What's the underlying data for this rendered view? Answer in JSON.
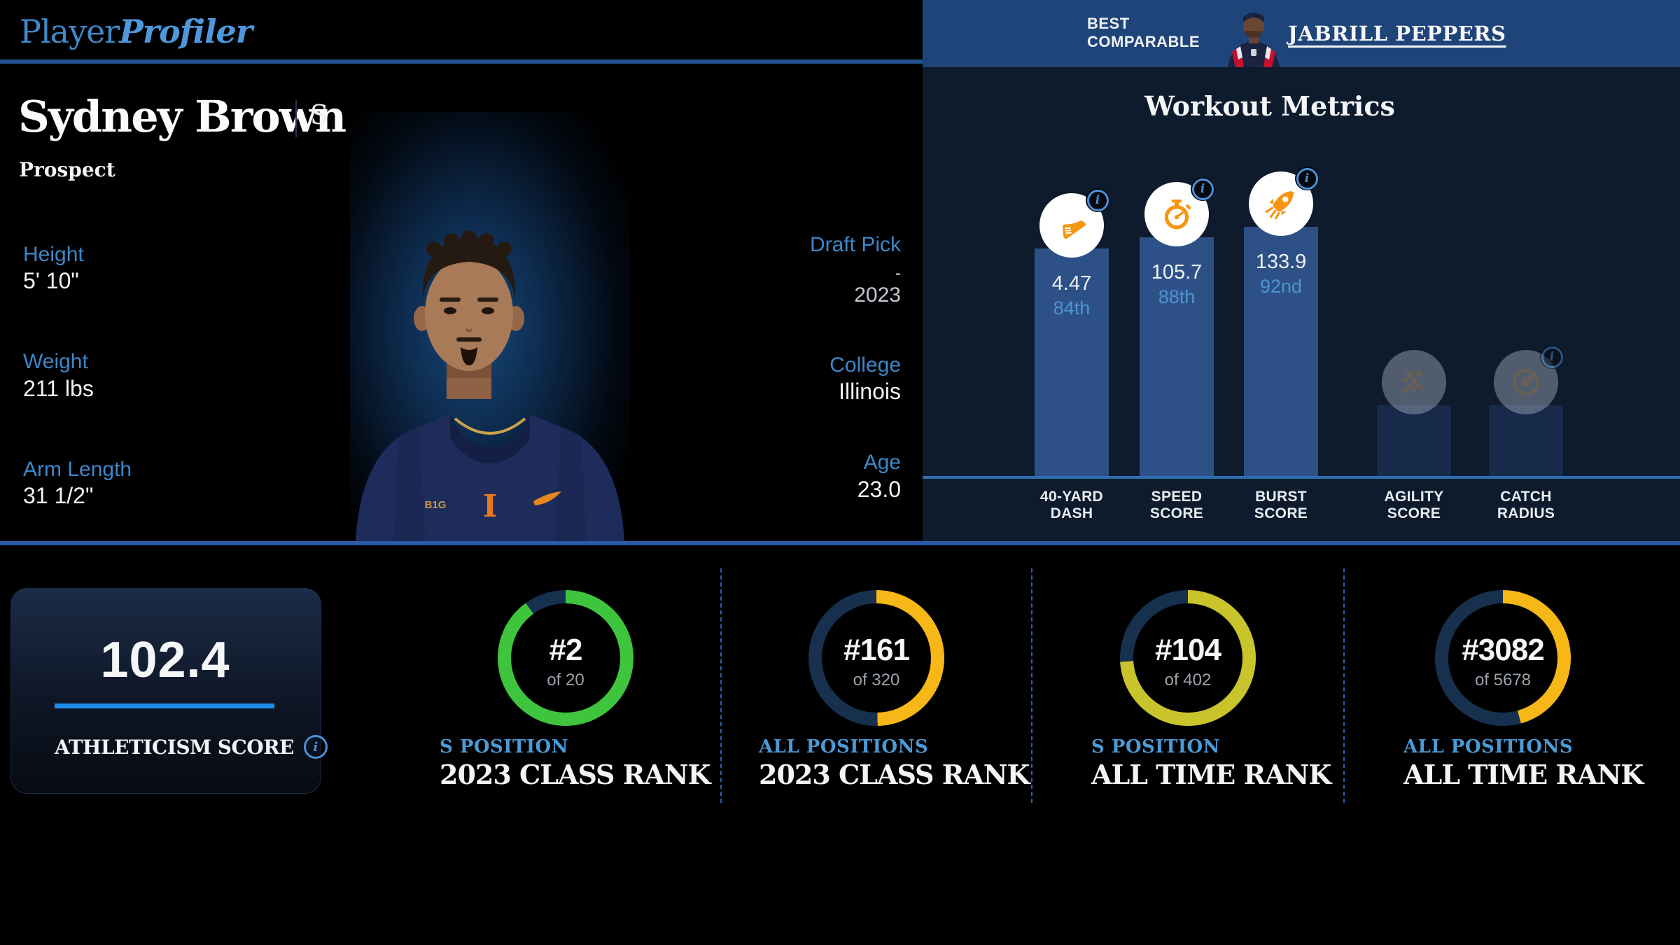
{
  "brand": {
    "word1": "Player",
    "word2": "Profiler"
  },
  "header": {
    "best_comparable_line1": "BEST",
    "best_comparable_line2": "COMPARABLE",
    "comparable_name": "JABRILL PEPPERS"
  },
  "player": {
    "name": "Sydney Brown",
    "position": "S",
    "status": "Prospect"
  },
  "bio": {
    "left": [
      {
        "label": "Height",
        "value": "5' 10\""
      },
      {
        "label": "Weight",
        "value": "211 lbs"
      },
      {
        "label": "Arm Length",
        "value": "31 1/2\""
      }
    ],
    "right": [
      {
        "label": "Draft Pick",
        "value": "-",
        "year": "2023"
      },
      {
        "label": "College",
        "value": "Illinois"
      },
      {
        "label": "Age",
        "value": "23.0"
      }
    ]
  },
  "workout": {
    "title": "Workout Metrics",
    "metrics": [
      {
        "label_line1": "40-YARD",
        "label_line2": "DASH",
        "value": "4.47",
        "percentile": "84th",
        "pct": 84,
        "icon": "shoe-icon",
        "has_data": true,
        "has_info": true
      },
      {
        "label_line1": "SPEED",
        "label_line2": "SCORE",
        "value": "105.7",
        "percentile": "88th",
        "pct": 88,
        "icon": "stopwatch-icon",
        "has_data": true,
        "has_info": true
      },
      {
        "label_line1": "BURST",
        "label_line2": "SCORE",
        "value": "133.9",
        "percentile": "92nd",
        "pct": 92,
        "icon": "rocket-icon",
        "has_data": true,
        "has_info": true
      },
      {
        "label_line1": "AGILITY",
        "label_line2": "SCORE",
        "value": "",
        "percentile": "",
        "pct": null,
        "icon": "runner-icon",
        "has_data": false,
        "has_info": false
      },
      {
        "label_line1": "CATCH",
        "label_line2": "RADIUS",
        "value": "",
        "percentile": "",
        "pct": null,
        "icon": "catch-radius-icon",
        "has_data": false,
        "has_info": true
      }
    ]
  },
  "athleticism": {
    "score": "102.4",
    "label": "ATHLETICISM SCORE"
  },
  "rankings": [
    {
      "rank": "#2",
      "of": "of 20",
      "scope": "S POSITION",
      "title": "2023 CLASS RANK",
      "ring_color": "#3ec43d",
      "fill_pct": 90.0
    },
    {
      "rank": "#161",
      "of": "of 320",
      "scope": "ALL POSITIONS",
      "title": "2023 CLASS RANK",
      "ring_color": "#f7b716",
      "fill_pct": 49.7
    },
    {
      "rank": "#104",
      "of": "of 402",
      "scope": "S POSITION",
      "title": "ALL TIME RANK",
      "ring_color": "#c9c42b",
      "fill_pct": 74.1
    },
    {
      "rank": "#3082",
      "of": "of 5678",
      "scope": "ALL POSITIONS",
      "title": "ALL TIME RANK",
      "ring_color": "#f7b716",
      "fill_pct": 45.7
    }
  ],
  "colors": {
    "accent_blue": "#3d87c9",
    "band_blue": "#1f4479",
    "bar_blue": "#2d5187",
    "panel_navy": "#0d1b2d",
    "ring_track_navy": "#16304e",
    "score_line_blue": "#1d8fe8",
    "green": "#3ec43d",
    "gold": "#f7b716",
    "yellow": "#c9c42b",
    "icon_orange": "#f6950f"
  },
  "chart_data": [
    {
      "type": "bar",
      "title": "Workout Metrics",
      "categories": [
        "40-Yard Dash",
        "Speed Score",
        "Burst Score",
        "Agility Score",
        "Catch Radius"
      ],
      "values": [
        4.47,
        105.7,
        133.9,
        null,
        null
      ],
      "series": [
        {
          "name": "percentile",
          "values": [
            84,
            88,
            92,
            null,
            null
          ]
        }
      ],
      "ylabel": "percentile",
      "ylim": [
        0,
        100
      ],
      "grid": false,
      "note": "bar height encodes percentile; agility and catch radius have no data"
    },
    {
      "type": "pie",
      "title": "S Position 2023 Class Rank",
      "values": [
        2,
        18
      ],
      "labels": [
        "rank 2",
        "remainder of 20"
      ]
    },
    {
      "type": "pie",
      "title": "All Positions 2023 Class Rank",
      "values": [
        161,
        159
      ],
      "labels": [
        "rank 161",
        "remainder of 320"
      ]
    },
    {
      "type": "pie",
      "title": "S Position All Time Rank",
      "values": [
        104,
        298
      ],
      "labels": [
        "rank 104",
        "remainder of 402"
      ]
    },
    {
      "type": "pie",
      "title": "All Positions All Time Rank",
      "values": [
        3082,
        2596
      ],
      "labels": [
        "rank 3082",
        "remainder of 5678"
      ]
    }
  ]
}
